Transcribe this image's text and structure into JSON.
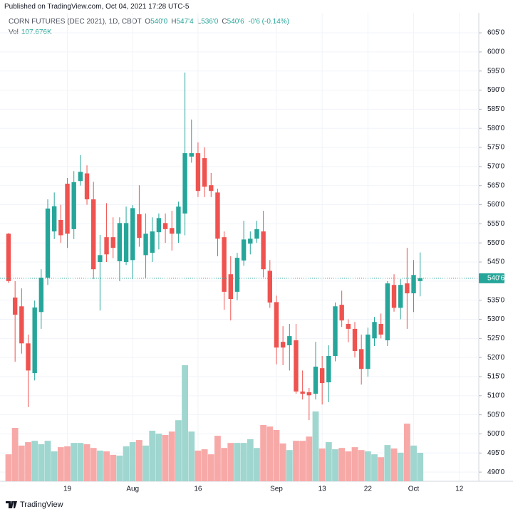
{
  "header": {
    "published": "Published on TradingView.com, Oct 04, 2021 17:28 UTC-5"
  },
  "footer": {
    "brand": "TradingView"
  },
  "chart_data": {
    "type": "candlestick",
    "title": "CORN FUTURES (DEC 2021), 1D, CBOT",
    "ohlc_legend": [
      {
        "key": "O",
        "text": "540'0"
      },
      {
        "key": "H",
        "text": "547'4"
      },
      {
        "key": "L",
        "text": "536'0"
      },
      {
        "key": "C",
        "text": "540'6"
      }
    ],
    "change": "-0'6 (-0.14%)",
    "volume_legend": {
      "key": "Vol",
      "text": "107.676K"
    },
    "up_color": "#26a69a",
    "down_color": "#ef5350",
    "up_volume_color": "#9fd6cf",
    "down_volume_color": "#f7a9a8",
    "grid": true,
    "last_price": {
      "value": 540.75,
      "label": "540'6"
    },
    "ylim": [
      487.6,
      608
    ],
    "yticks": [
      {
        "value": 605,
        "label": "605'0"
      },
      {
        "value": 600,
        "label": "600'0"
      },
      {
        "value": 595,
        "label": "595'0"
      },
      {
        "value": 590,
        "label": "590'0"
      },
      {
        "value": 585,
        "label": "585'0"
      },
      {
        "value": 580,
        "label": "580'0"
      },
      {
        "value": 575,
        "label": "575'0"
      },
      {
        "value": 570,
        "label": "570'0"
      },
      {
        "value": 565,
        "label": "565'0"
      },
      {
        "value": 560,
        "label": "560'0"
      },
      {
        "value": 555,
        "label": "555'0"
      },
      {
        "value": 550,
        "label": "550'0"
      },
      {
        "value": 545,
        "label": "545'0"
      },
      {
        "value": 540,
        "label": "540'0"
      },
      {
        "value": 535,
        "label": "535'0"
      },
      {
        "value": 530,
        "label": "530'0"
      },
      {
        "value": 525,
        "label": "525'0"
      },
      {
        "value": 520,
        "label": "520'0"
      },
      {
        "value": 515,
        "label": "515'0"
      },
      {
        "value": 510,
        "label": "510'0"
      },
      {
        "value": 505,
        "label": "505'0"
      },
      {
        "value": 500,
        "label": "500'0"
      },
      {
        "value": 495,
        "label": "495'0"
      },
      {
        "value": 490,
        "label": "490'0"
      }
    ],
    "categories": [
      null,
      null,
      null,
      null,
      null,
      null,
      null,
      null,
      null,
      "19",
      null,
      null,
      null,
      null,
      null,
      null,
      null,
      null,
      null,
      "Aug",
      null,
      null,
      null,
      null,
      null,
      null,
      null,
      null,
      null,
      "16",
      null,
      null,
      null,
      null,
      null,
      null,
      null,
      null,
      null,
      null,
      null,
      "Sep",
      null,
      null,
      null,
      null,
      null,
      null,
      "13",
      null,
      null,
      null,
      null,
      null,
      null,
      "22",
      null,
      null,
      null,
      null,
      null,
      null,
      "Oct",
      null,
      null,
      null,
      null,
      null,
      null,
      "12"
    ],
    "open": [
      552.4,
      535.7,
      533.4,
      523.7,
      515.9,
      531.9,
      540.9,
      553,
      556,
      565.5,
      553.6,
      566.2,
      568.2,
      561.4,
      545,
      551.5,
      551.5,
      545.2,
      545,
      545.5,
      557.5,
      546.8,
      547.4,
      552.8,
      555.2,
      553.9,
      552.4,
      557.7,
      572.6,
      573.5,
      572.2,
      565.1,
      563.2,
      551.5,
      541.8,
      537.2,
      545.4,
      549.8,
      551.1,
      553,
      542.7,
      534.5,
      524.1,
      523.2,
      524.5,
      511.1,
      510.9,
      510.5,
      517.2,
      513.5,
      520.4,
      533.8,
      528.8,
      527.5,
      522.2,
      517,
      525,
      528.8,
      524.5,
      539,
      533,
      539.4,
      536.8,
      540,
      null,
      null,
      null,
      null,
      null,
      null
    ],
    "high": [
      552.6,
      540,
      538.1,
      526,
      534.9,
      543.1,
      561.4,
      563.2,
      560,
      567,
      568.8,
      573,
      570.3,
      566,
      552.1,
      560.4,
      556.7,
      556.7,
      559.5,
      559.9,
      565.1,
      557.7,
      556.7,
      557.7,
      557.7,
      558.4,
      560.8,
      594.6,
      582.3,
      576.3,
      575,
      568.3,
      564.2,
      553,
      546.5,
      547.4,
      555.8,
      553,
      555.8,
      558.4,
      545.5,
      536.2,
      528.2,
      528.8,
      528.8,
      516.6,
      512,
      524.1,
      520.4,
      523.2,
      534.4,
      537.5,
      530,
      529.3,
      526,
      527.8,
      530.6,
      531.5,
      540,
      541.8,
      540.5,
      548.7,
      545.5,
      547.5,
      null,
      null,
      null,
      null,
      null,
      null
    ],
    "low": [
      539.5,
      518.9,
      521,
      507,
      514,
      527.5,
      539,
      551,
      550,
      548.7,
      551,
      565,
      560,
      540.5,
      532.3,
      545,
      546,
      540,
      544.2,
      540.5,
      549,
      540.9,
      545,
      548.3,
      550,
      548,
      550,
      552,
      571,
      562,
      562,
      562,
      546.5,
      532.5,
      529.7,
      535,
      544,
      547,
      550,
      541,
      533,
      518.2,
      518,
      516.6,
      510.5,
      509,
      503.6,
      509,
      507.7,
      508.3,
      519,
      528,
      524,
      520,
      512.9,
      515,
      523,
      525,
      523,
      532,
      530,
      527.5,
      531.9,
      536,
      null,
      null,
      null,
      null,
      null,
      null
    ],
    "close": [
      540,
      531.2,
      523.7,
      516.6,
      533.1,
      540.9,
      559,
      559.6,
      552,
      552.4,
      565.9,
      568.6,
      561.4,
      543.1,
      546.8,
      547,
      548.7,
      555.2,
      555.2,
      559.1,
      551.3,
      552.4,
      553,
      556.5,
      553.6,
      552.4,
      559.5,
      573.5,
      573.5,
      563.6,
      564.7,
      563.6,
      551.1,
      537.2,
      535.3,
      546.1,
      550.9,
      551.1,
      553.6,
      543.1,
      534.4,
      522.6,
      522.6,
      525.6,
      511.1,
      510.5,
      510.1,
      517.6,
      513.3,
      520.4,
      533.4,
      529.7,
      527.5,
      521.7,
      517,
      526,
      529.3,
      526,
      539.4,
      533,
      539,
      536.8,
      541.6,
      540.75,
      null,
      null,
      null,
      null,
      null,
      null
    ],
    "volume": [
      102,
      202,
      135,
      148,
      153,
      140,
      153,
      113,
      129,
      132,
      145,
      145,
      140,
      126,
      116,
      113,
      100,
      97,
      132,
      148,
      156,
      135,
      191,
      180,
      175,
      188,
      231,
      439,
      188,
      116,
      121,
      102,
      172,
      126,
      145,
      145,
      145,
      159,
      126,
      213,
      207,
      194,
      143,
      118,
      153,
      153,
      169,
      264,
      124,
      148,
      121,
      126,
      113,
      129,
      118,
      113,
      102,
      91,
      137,
      124,
      108,
      218,
      135,
      107.676,
      null,
      null,
      null,
      null,
      null,
      null
    ]
  }
}
